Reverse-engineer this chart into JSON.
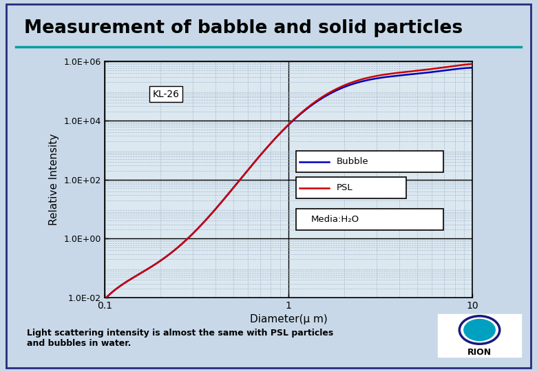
{
  "title": "Measurement of babble and solid particles",
  "xlabel": "Diameter(μ m)",
  "ylabel": "Relative Intensity",
  "bg_color": "#c8d8e8",
  "plot_bg_color": "#dce8f0",
  "border_color": "#2a2a7e",
  "title_underline_color": "#00a0a0",
  "yticks_labels": [
    "1.0E-02",
    "1.0E+00",
    "1.0E+02",
    "1.0E+04",
    "1.0E+06"
  ],
  "ytick_vals": [
    0.01,
    1.0,
    100.0,
    10000.0,
    1000000.0
  ],
  "legend_bubble": "Bubble",
  "legend_psl": "PSL",
  "legend_media": "Media:H₂O",
  "annotation": "KL-26",
  "bubble_color": "#0000bb",
  "psl_color": "#cc0000",
  "note_text": "Light scattering intensity is almost the same with PSL particles\nand bubbles in water.",
  "grid_major_color": "#000000",
  "grid_minor_color": "#9ab0c8",
  "rion_logo_color": "#007ab0",
  "rion_ring_color": "#1a1a7a"
}
